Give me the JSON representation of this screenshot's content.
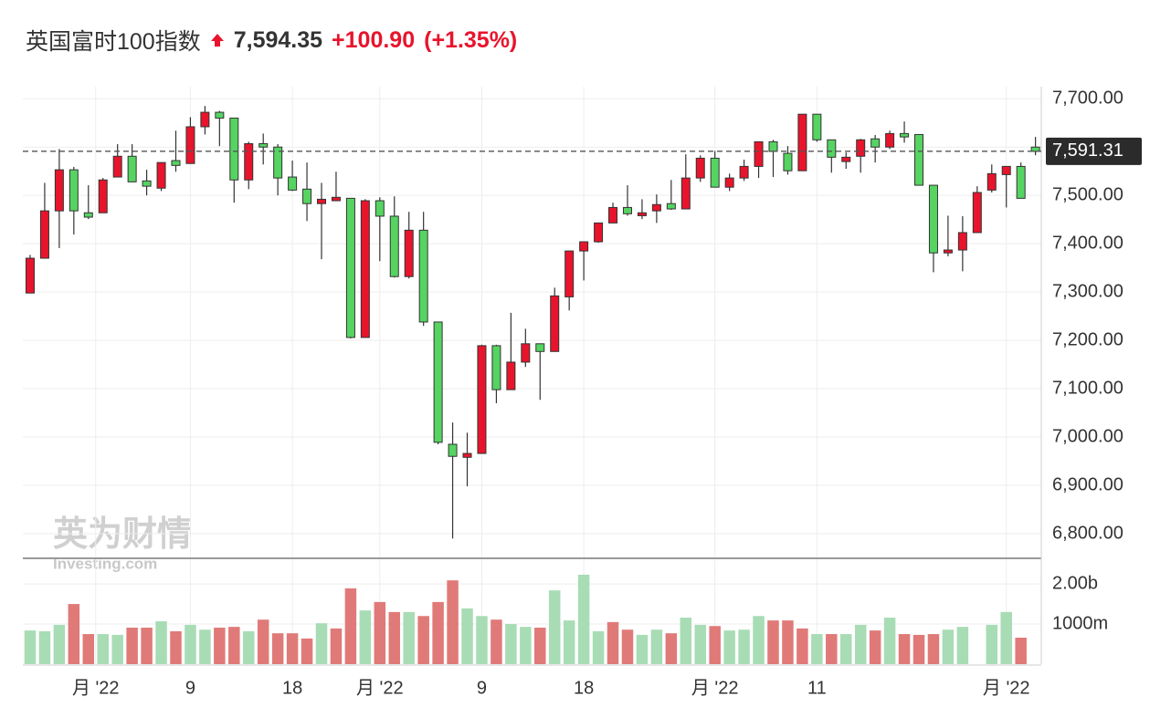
{
  "header": {
    "title": "英国富时100指数",
    "price": "7,594.35",
    "change": "+100.90",
    "change_pct": "(+1.35%)"
  },
  "watermark": {
    "brand": "英为财情",
    "site": "Investing.com"
  },
  "chart_data": {
    "type": "candlestick",
    "up_color": "#e8142c",
    "down_color": "#55d462",
    "open": [
      7298,
      7370,
      7468,
      7553,
      7464,
      7464,
      7538,
      7581,
      7530,
      7515,
      7572,
      7566,
      7642,
      7672,
      7660,
      7532,
      7607,
      7600,
      7538,
      7513,
      7483,
      7489,
      7494,
      7206,
      7489,
      7457,
      7332,
      7428,
      7238,
      6985,
      6958,
      6966,
      7189,
      7098,
      7155,
      7193,
      7177,
      7290,
      7385,
      7404,
      7443,
      7475,
      7458,
      7468,
      7483,
      7472,
      7536,
      7577,
      7517,
      7536,
      7560,
      7611,
      7587,
      7551,
      7668,
      7615,
      7570,
      7581,
      7617,
      7600,
      7628,
      7626,
      7521,
      7381,
      7387,
      7423,
      7511,
      7543,
      7560,
      7600
    ],
    "high": [
      7377,
      7526,
      7596,
      7559,
      7521,
      7536,
      7606,
      7606,
      7553,
      7568,
      7634,
      7662,
      7685,
      7675,
      7660,
      7611,
      7628,
      7606,
      7572,
      7568,
      7526,
      7549,
      7494,
      7492,
      7496,
      7498,
      7466,
      7466,
      7238,
      7030,
      7009,
      7191,
      7191,
      7257,
      7224,
      7193,
      7309,
      7385,
      7404,
      7443,
      7485,
      7521,
      7492,
      7502,
      7532,
      7585,
      7583,
      7592,
      7545,
      7574,
      7611,
      7615,
      7602,
      7668,
      7668,
      7615,
      7589,
      7617,
      7625,
      7634,
      7653,
      7626,
      7521,
      7458,
      7457,
      7519,
      7564,
      7560,
      7568,
      7621
    ],
    "low": [
      7298,
      7370,
      7391,
      7419,
      7451,
      7464,
      7538,
      7528,
      7500,
      7509,
      7549,
      7566,
      7626,
      7602,
      7485,
      7513,
      7564,
      7500,
      7509,
      7447,
      7368,
      7489,
      7204,
      7206,
      7364,
      7330,
      7328,
      7230,
      6985,
      6790,
      6898,
      6966,
      7070,
      7098,
      7145,
      7077,
      7177,
      7262,
      7324,
      7402,
      7443,
      7458,
      7451,
      7443,
      7470,
      7472,
      7528,
      7517,
      7509,
      7530,
      7536,
      7538,
      7543,
      7551,
      7611,
      7547,
      7555,
      7547,
      7568,
      7596,
      7609,
      7521,
      7341,
      7374,
      7343,
      7423,
      7506,
      7475,
      7494,
      7583
    ],
    "close": [
      7370,
      7468,
      7553,
      7468,
      7455,
      7532,
      7581,
      7528,
      7519,
      7568,
      7562,
      7642,
      7672,
      7660,
      7532,
      7607,
      7600,
      7536,
      7511,
      7483,
      7492,
      7496,
      7206,
      7489,
      7457,
      7332,
      7428,
      7238,
      6989,
      6960,
      6966,
      7189,
      7098,
      7155,
      7193,
      7177,
      7292,
      7385,
      7404,
      7443,
      7475,
      7462,
      7464,
      7481,
      7472,
      7536,
      7577,
      7517,
      7536,
      7560,
      7611,
      7591,
      7551,
      7668,
      7615,
      7579,
      7579,
      7615,
      7600,
      7628,
      7621,
      7521,
      7381,
      7387,
      7423,
      7506,
      7545,
      7560,
      7494,
      7591
    ],
    "volume": [
      840,
      820,
      980,
      1500,
      750,
      750,
      730,
      910,
      910,
      1070,
      820,
      980,
      860,
      910,
      930,
      820,
      1110,
      770,
      770,
      640,
      1020,
      890,
      1890,
      1340,
      1550,
      1300,
      1300,
      1200,
      1550,
      2090,
      1390,
      1200,
      1110,
      1000,
      930,
      910,
      1840,
      1090,
      2230,
      820,
      1050,
      860,
      730,
      860,
      770,
      1160,
      980,
      950,
      840,
      860,
      1200,
      1090,
      1090,
      890,
      750,
      750,
      750,
      980,
      840,
      1160,
      750,
      730,
      750,
      860,
      930,
      null,
      980,
      1300,
      660,
      null
    ],
    "volume_colors": [
      "#a8dcb5",
      "#a8dcb5",
      "#a8dcb5",
      "#e07a78",
      "#e07a78",
      "#a8dcb5",
      "#a8dcb5",
      "#e07a78",
      "#e07a78",
      "#a8dcb5",
      "#e07a78",
      "#a8dcb5",
      "#a8dcb5",
      "#e07a78",
      "#e07a78",
      "#a8dcb5",
      "#e07a78",
      "#e07a78",
      "#e07a78",
      "#e07a78",
      "#a8dcb5",
      "#e07a78",
      "#e07a78",
      "#a8dcb5",
      "#e07a78",
      "#e07a78",
      "#a8dcb5",
      "#e07a78",
      "#e07a78",
      "#e07a78",
      "#a8dcb5",
      "#a8dcb5",
      "#e07a78",
      "#a8dcb5",
      "#a8dcb5",
      "#e07a78",
      "#a8dcb5",
      "#a8dcb5",
      "#a8dcb5",
      "#a8dcb5",
      "#e07a78",
      "#e07a78",
      "#a8dcb5",
      "#a8dcb5",
      "#e07a78",
      "#a8dcb5",
      "#a8dcb5",
      "#e07a78",
      "#a8dcb5",
      "#a8dcb5",
      "#a8dcb5",
      "#e07a78",
      "#e07a78",
      "#e07a78",
      "#a8dcb5",
      "#e07a78",
      "#a8dcb5",
      "#a8dcb5",
      "#e07a78",
      "#a8dcb5",
      "#e07a78",
      "#e07a78",
      "#e07a78",
      "#a8dcb5",
      "#a8dcb5",
      null,
      "#a8dcb5",
      "#a8dcb5",
      "#e07a78",
      null
    ],
    "last_price": 7591.31,
    "last_price_label": "7,591.31",
    "xlim": [
      -0.5,
      69.4
    ],
    "xticks": [
      {
        "value": 4.5,
        "label": "月 '22"
      },
      {
        "value": 11,
        "label": "9"
      },
      {
        "value": 18,
        "label": "18"
      },
      {
        "value": 24,
        "label": "月 '22"
      },
      {
        "value": 31,
        "label": "9"
      },
      {
        "value": 38,
        "label": "18"
      },
      {
        "value": 47,
        "label": "月 '22"
      },
      {
        "value": 54,
        "label": "11"
      },
      {
        "value": 67,
        "label": "月 '22"
      }
    ],
    "ylim": [
      6749,
      7725
    ],
    "yticks": [
      {
        "value": 7700,
        "label": "7,700.00"
      },
      {
        "value": 7600,
        "label": "7,600.00"
      },
      {
        "value": 7500,
        "label": "7,500.00"
      },
      {
        "value": 7400,
        "label": "7,400.00"
      },
      {
        "value": 7300,
        "label": "7,300.00"
      },
      {
        "value": 7200,
        "label": "7,200.00"
      },
      {
        "value": 7100,
        "label": "7,100.00"
      },
      {
        "value": 7000,
        "label": "7,000.00"
      },
      {
        "value": 6900,
        "label": "6,900.00"
      },
      {
        "value": 6800,
        "label": "6,800.00"
      }
    ],
    "hidden_ytick_under_label": 7600,
    "y2lim": [
      0,
      2640
    ],
    "y2ticks": [
      {
        "value": 2000,
        "label": "2.00b"
      },
      {
        "value": 1000,
        "label": "1000m"
      }
    ],
    "grid": true
  }
}
